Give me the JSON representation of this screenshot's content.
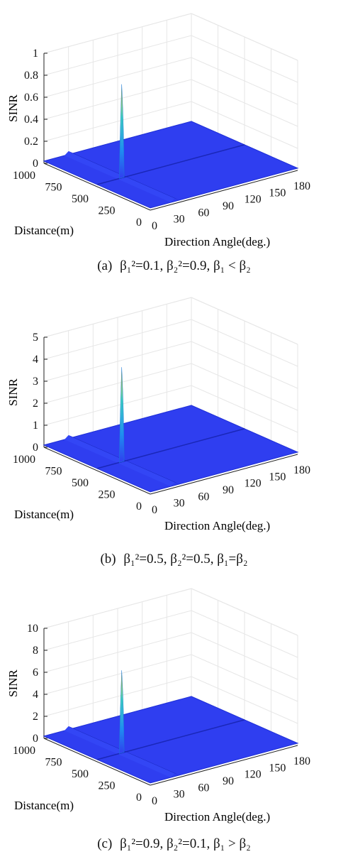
{
  "chart_data": [
    {
      "type": "surface3d",
      "caption_label": "(a)",
      "caption_formula": "β₁²=0.1,  β₂²=0.9,  β₁ < β₂",
      "xlabel": "Direction Angle(deg.)",
      "ylabel": "Distance(m)",
      "zlabel": "SINR",
      "x_ticks": [
        0,
        30,
        60,
        90,
        120,
        150,
        180
      ],
      "y_ticks": [
        0,
        250,
        500,
        750,
        1000
      ],
      "z_ticks": [
        0,
        0.2,
        0.4,
        0.6,
        0.8,
        1
      ],
      "xlim": [
        0,
        180
      ],
      "ylim": [
        0,
        1000
      ],
      "zlim": [
        0,
        1
      ],
      "peak": {
        "x": 30,
        "y": 500,
        "z": 0.87
      },
      "floor": 0.02,
      "ridge": {
        "x": 30,
        "z": 0.05
      }
    },
    {
      "type": "surface3d",
      "caption_label": "(b)",
      "caption_formula": "β₁²=0.5,  β₂²=0.5,  β₁=β₂",
      "xlabel": "Direction Angle(deg.)",
      "ylabel": "Distance(m)",
      "zlabel": "SINR",
      "x_ticks": [
        0,
        30,
        60,
        90,
        120,
        150,
        180
      ],
      "y_ticks": [
        0,
        250,
        500,
        750,
        1000
      ],
      "z_ticks": [
        0,
        1,
        2,
        3,
        4,
        5
      ],
      "xlim": [
        0,
        180
      ],
      "ylim": [
        0,
        1000
      ],
      "zlim": [
        0,
        5
      ],
      "peak": {
        "x": 30,
        "y": 500,
        "z": 4.4
      },
      "floor": 0.1,
      "ridge": {
        "x": 30,
        "z": 0.25
      }
    },
    {
      "type": "surface3d",
      "caption_label": "(c)",
      "caption_formula": "β₁²=0.9,  β₂²=0.1,  β₁ > β₂",
      "xlabel": "Direction Angle(deg.)",
      "ylabel": "Distance(m)",
      "zlabel": "SINR",
      "x_ticks": [
        0,
        30,
        60,
        90,
        120,
        150,
        180
      ],
      "y_ticks": [
        0,
        250,
        500,
        750,
        1000
      ],
      "z_ticks": [
        0,
        2,
        4,
        6,
        8,
        10
      ],
      "xlim": [
        0,
        180
      ],
      "ylim": [
        0,
        1000
      ],
      "zlim": [
        0,
        10
      ],
      "peak": {
        "x": 30,
        "y": 500,
        "z": 7.7
      },
      "floor": 0.2,
      "ridge": {
        "x": 30,
        "z": 0.5
      }
    }
  ],
  "colors": {
    "surface_base": "#2f3ef0",
    "surface_dark": "#1e2fd6",
    "peak_top": "#f2c418",
    "peak_mid": "#3fd0c0",
    "peak_low": "#1f8ef0",
    "axis": "#222222",
    "grid": "#e6e6e6"
  }
}
